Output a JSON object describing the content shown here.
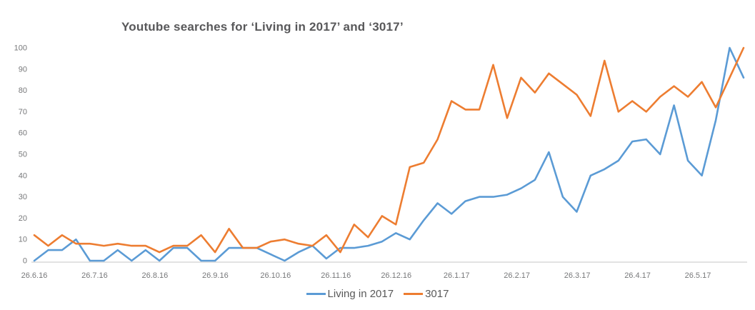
{
  "chart_data": {
    "type": "line",
    "title": "Youtube searches for ‘Living in 2017’ and ‘3017’",
    "x_tick_labels": [
      "26.6.16",
      "26.7.16",
      "26.8.16",
      "26.9.16",
      "26.10.16",
      "26.11.16",
      "26.12.16",
      "26.1.17",
      "26.2.17",
      "26.3.17",
      "26.4.17",
      "26.5.17"
    ],
    "y_ticks": [
      0,
      10,
      20,
      30,
      40,
      50,
      60,
      70,
      80,
      90,
      100
    ],
    "ylim": [
      0,
      100
    ],
    "x_unit": "weekly points, 26.6.16 through mid-June 2017",
    "grid": false,
    "legend_position": "bottom-center",
    "colors": {
      "axis_line": "#d9d9d9",
      "tick_text": "#77787a",
      "title_text": "#58585a",
      "legend_text": "#595959"
    },
    "series": [
      {
        "name": "Living in 2017",
        "color": "#5B9BD5",
        "values": [
          0,
          5,
          5,
          10,
          0,
          0,
          5,
          0,
          5,
          0,
          6,
          6,
          0,
          0,
          6,
          6,
          6,
          3,
          0,
          4,
          7,
          1,
          6,
          6,
          7,
          9,
          13,
          10,
          19,
          27,
          22,
          28,
          30,
          30,
          31,
          34,
          38,
          51,
          30,
          23,
          40,
          43,
          47,
          56,
          57,
          50,
          73,
          47,
          40,
          66,
          100,
          86
        ]
      },
      {
        "name": "3017",
        "color": "#ED7D31",
        "values": [
          12,
          7,
          12,
          8,
          8,
          7,
          8,
          7,
          7,
          4,
          7,
          7,
          12,
          4,
          15,
          6,
          6,
          9,
          10,
          8,
          7,
          12,
          4,
          17,
          11,
          21,
          17,
          44,
          46,
          57,
          75,
          71,
          71,
          92,
          67,
          86,
          79,
          88,
          83,
          78,
          68,
          94,
          70,
          75,
          70,
          77,
          82,
          77,
          84,
          72,
          86,
          100
        ]
      }
    ]
  }
}
